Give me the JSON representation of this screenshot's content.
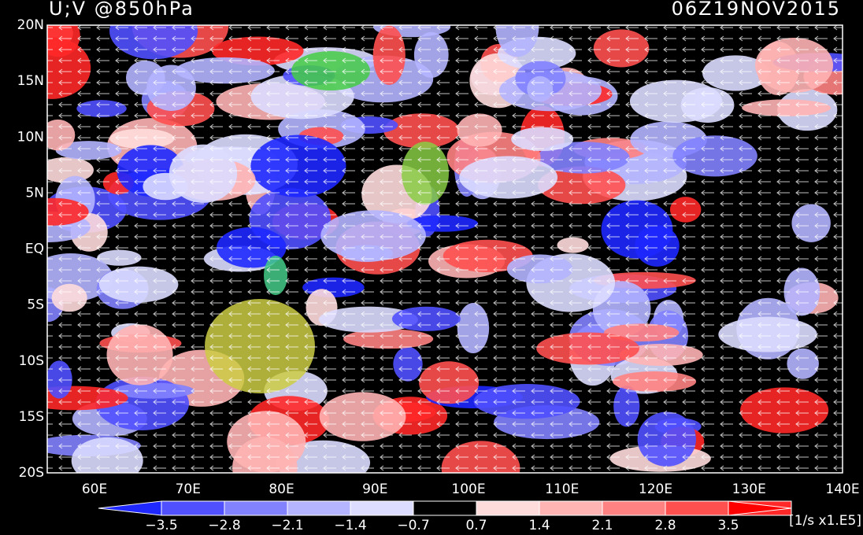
{
  "header": {
    "title": "U;V @850hPa",
    "time": "06Z19NOV2015"
  },
  "map": {
    "lat_labels": [
      "20N",
      "15N",
      "10N",
      "5N",
      "EQ",
      "5S",
      "10S",
      "15S",
      "20S"
    ],
    "lon_labels": [
      "60E",
      "70E",
      "80E",
      "90E",
      "100E",
      "110E",
      "120E",
      "130E",
      "140E"
    ]
  },
  "colorbar": {
    "colors": [
      "#1e28ff",
      "#5050ff",
      "#8282ff",
      "#b4b4ff",
      "#dcdcff",
      "#000000",
      "#ffdcdc",
      "#ffb4b4",
      "#ff8282",
      "#ff5050",
      "#ff2828",
      "#ff0000"
    ],
    "labels": [
      "−3.5",
      "−2.8",
      "−2.1",
      "−1.4",
      "−0.7",
      "0.7",
      "1.4",
      "2.1",
      "2.8",
      "3.5"
    ],
    "units": "[1/s x1.E5]"
  }
}
